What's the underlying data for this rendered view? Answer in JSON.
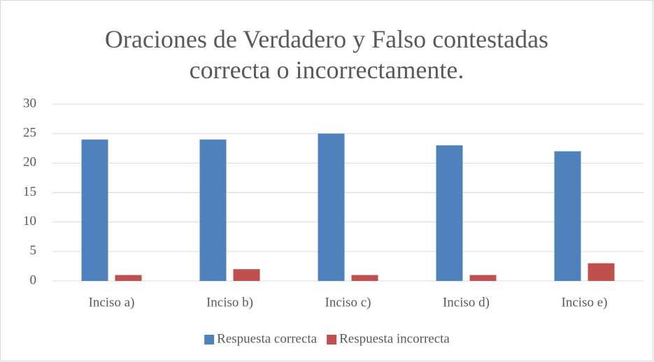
{
  "chart_data": {
    "type": "bar",
    "title": "Oraciones de Verdadero y Falso contestadas correcta o incorrectamente.",
    "categories": [
      "Inciso a)",
      "Inciso b)",
      "Inciso c)",
      "Inciso d)",
      "Inciso e)"
    ],
    "series": [
      {
        "name": "Respuesta correcta",
        "color": "#4f81bd",
        "values": [
          24,
          24,
          25,
          23,
          22
        ]
      },
      {
        "name": "Respuesta incorrecta",
        "color": "#c0504d",
        "values": [
          1,
          2,
          1,
          1,
          3
        ]
      }
    ],
    "ylim": [
      0,
      30
    ],
    "yticks": [
      0,
      5,
      10,
      15,
      20,
      25,
      30
    ],
    "grid": true,
    "legend": "bottom"
  }
}
